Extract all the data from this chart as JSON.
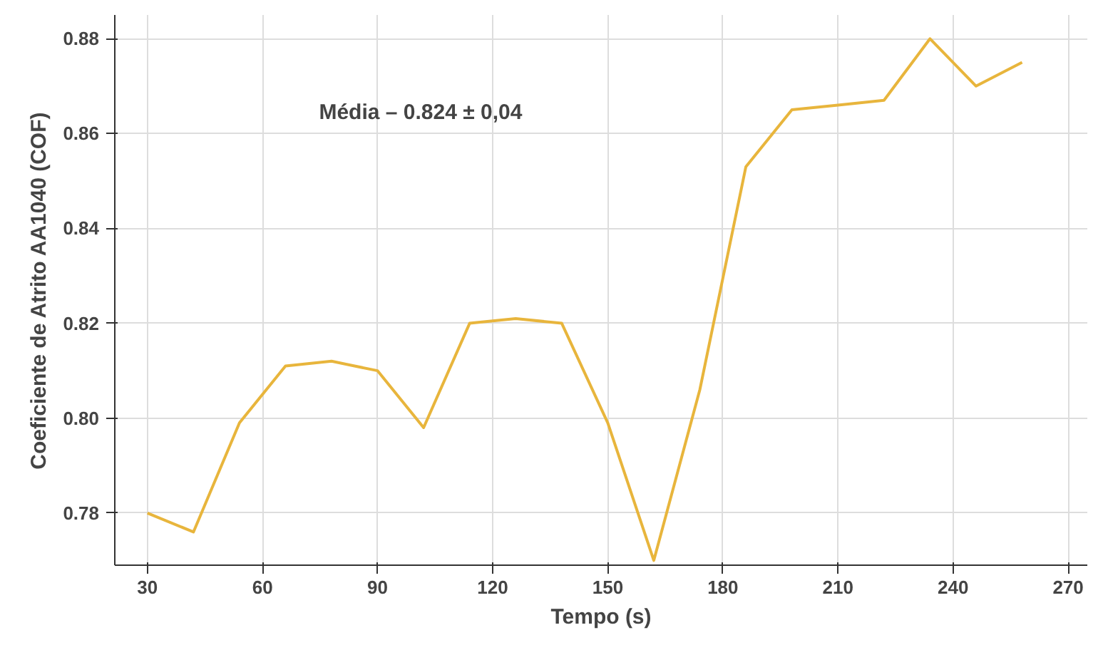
{
  "chart_data": {
    "type": "line",
    "xlabel": "Tempo (s)",
    "ylabel": "Coeficiente de Atrito AA1040 (COF)",
    "annotations": [
      "Média – 0.824 ± 0,04"
    ],
    "x": [
      30,
      42,
      54,
      66,
      78,
      90,
      102,
      114,
      126,
      138,
      150,
      162,
      174,
      186,
      198,
      210,
      222,
      234,
      246,
      258
    ],
    "series": [
      {
        "color": "#e8b53c",
        "values": [
          0.78,
          0.776,
          0.799,
          0.811,
          0.812,
          0.81,
          0.798,
          0.82,
          0.821,
          0.82,
          0.799,
          0.77,
          0.806,
          0.853,
          0.865,
          0.866,
          0.867,
          0.88,
          0.87,
          0.875
        ]
      }
    ],
    "xlim": [
      21.5,
      275
    ],
    "ylim": [
      0.769,
      0.885
    ],
    "xticks": [
      30,
      60,
      90,
      120,
      150,
      180,
      210,
      240,
      270
    ],
    "yticks": [
      {
        "value": 0.78,
        "label": "0.78"
      },
      {
        "value": 0.8,
        "label": "0.80"
      },
      {
        "value": 0.82,
        "label": "0.82"
      },
      {
        "value": 0.84,
        "label": "0.84"
      },
      {
        "value": 0.86,
        "label": "0.86"
      },
      {
        "value": 0.88,
        "label": "0.88"
      }
    ],
    "grid": true,
    "marker": "none",
    "line_style": "solid"
  }
}
